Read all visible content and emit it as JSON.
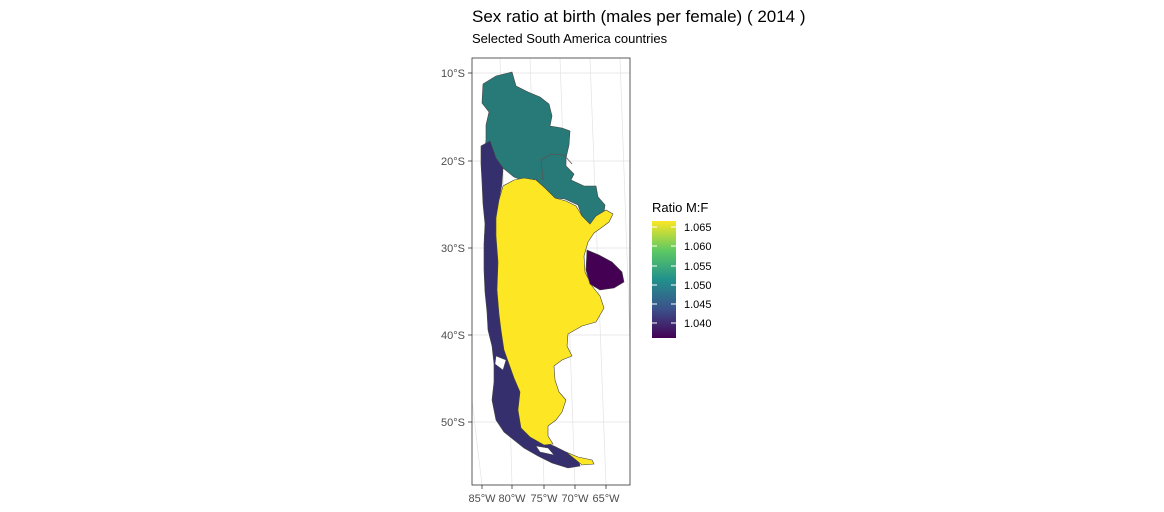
{
  "title": "Sex ratio at birth (males per female) ( 2014 )",
  "subtitle": "Selected South America countries",
  "y_ticks": [
    "10°S",
    "20°S",
    "30°S",
    "40°S",
    "50°S"
  ],
  "x_ticks": [
    "85°W",
    "80°W",
    "75°W",
    "70°W",
    "65°W"
  ],
  "legend": {
    "title": "Ratio M:F",
    "labels": [
      "1.065",
      "1.060",
      "1.055",
      "1.050",
      "1.045",
      "1.040"
    ],
    "colors": [
      "#fde725",
      "#5ec962",
      "#21918c",
      "#3b528b",
      "#440154"
    ]
  },
  "regions": [
    {
      "id": "peru",
      "ratio": 1.05,
      "color": "#287a79"
    },
    {
      "id": "chile",
      "ratio": 1.045,
      "color": "#35306d"
    },
    {
      "id": "argentina",
      "ratio": 1.066,
      "color": "#fde725"
    },
    {
      "id": "uruguay",
      "ratio": 1.037,
      "color": "#440154"
    }
  ],
  "map_data": {
    "type": "choropleth",
    "variable": "Ratio M:F",
    "value_range": [
      1.037,
      1.066
    ]
  }
}
